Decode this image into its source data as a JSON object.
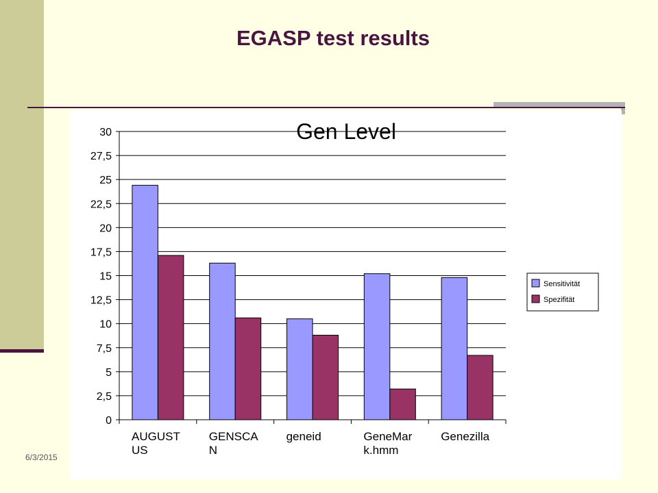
{
  "slide": {
    "title": "EGASP test results",
    "date": "6/3/2015"
  },
  "colors": {
    "background": "#FFFFE6",
    "side_band": "#CCCC99",
    "accent": "#4A1440",
    "series_1": "#9999FF",
    "series_2": "#993366"
  },
  "chart_data": {
    "type": "bar",
    "title": "Gen Level",
    "xlabel": "",
    "ylabel": "",
    "categories": [
      "AUGUST US",
      "GENSCA N",
      "geneid",
      "GeneMar k.hmm",
      "Genezilla"
    ],
    "category_label_lines": [
      [
        "AUGUST",
        "US"
      ],
      [
        "GENSCA",
        "N"
      ],
      [
        "geneid"
      ],
      [
        "GeneMar",
        "k.hmm"
      ],
      [
        "Genezilla"
      ]
    ],
    "series": [
      {
        "name": "Sensitivität",
        "values": [
          24.4,
          16.3,
          10.5,
          15.2,
          14.8
        ],
        "color": "#9999FF"
      },
      {
        "name": "Spezifität",
        "values": [
          17.1,
          10.6,
          8.8,
          3.2,
          6.7
        ],
        "color": "#993366"
      }
    ],
    "ylim": [
      0,
      30
    ],
    "yticks": [
      0,
      2.5,
      5,
      7.5,
      10,
      12.5,
      15,
      17.5,
      20,
      22.5,
      25,
      27.5,
      30
    ],
    "ytick_labels": [
      "0",
      "2,5",
      "5",
      "7,5",
      "10",
      "12,5",
      "15",
      "17,5",
      "20",
      "22,5",
      "25",
      "27,5",
      "30"
    ],
    "grid": true,
    "legend_position": "right"
  }
}
